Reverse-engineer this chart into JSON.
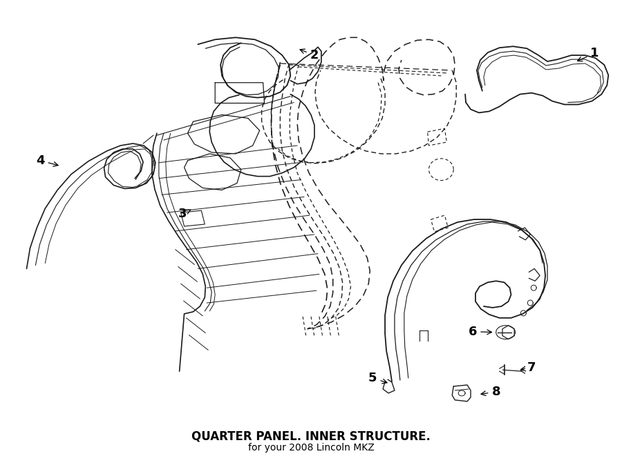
{
  "title": "QUARTER PANEL. INNER STRUCTURE.",
  "subtitle": "for your 2008 Lincoln MKZ",
  "bg_color": "#ffffff",
  "line_color": "#1a1a1a",
  "title_fontsize": 12,
  "subtitle_fontsize": 10,
  "fig_width": 9.0,
  "fig_height": 6.61,
  "dpi": 100
}
